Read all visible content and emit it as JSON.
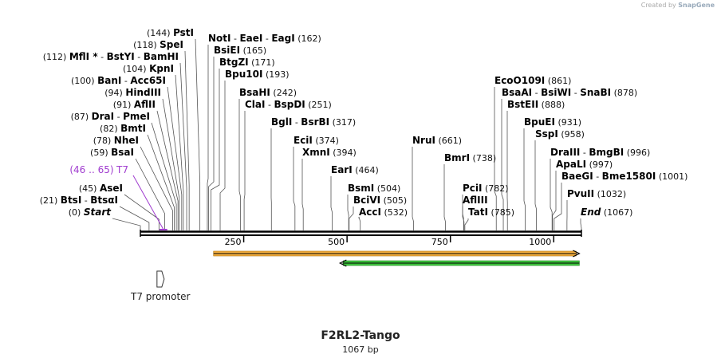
{
  "credit": {
    "prefix": "Created by",
    "brand": "SnapGene"
  },
  "plasmid": {
    "name": "F2RL2-Tango",
    "length": "1067 bp"
  },
  "scale": {
    "total_bp": 1067,
    "ticks": [
      250,
      500,
      750,
      1000
    ]
  },
  "sites": [
    {
      "pos": 0,
      "label": "(0)",
      "parts": [
        {
          "t": "Start",
          "end": true
        }
      ]
    },
    {
      "pos": 21,
      "label": "(21)",
      "parts": [
        {
          "t": "BtsI"
        },
        {
          "t": "BtsαI"
        }
      ]
    },
    {
      "pos": 45,
      "label": "(45)",
      "parts": [
        {
          "t": "AseI"
        }
      ]
    },
    {
      "pos": 46,
      "label": "(46 .. 65)",
      "parts": [
        {
          "t": "T7"
        }
      ],
      "feature": true
    },
    {
      "pos": 59,
      "label": "(59)",
      "parts": [
        {
          "t": "BsaI"
        }
      ]
    },
    {
      "pos": 78,
      "label": "(78)",
      "parts": [
        {
          "t": "NheI"
        }
      ]
    },
    {
      "pos": 82,
      "label": "(82)",
      "parts": [
        {
          "t": "BmtI"
        }
      ]
    },
    {
      "pos": 87,
      "label": "(87)",
      "parts": [
        {
          "t": "DraI"
        },
        {
          "t": "PmeI"
        }
      ]
    },
    {
      "pos": 91,
      "label": "(91)",
      "parts": [
        {
          "t": "AflII"
        }
      ]
    },
    {
      "pos": 94,
      "label": "(94)",
      "parts": [
        {
          "t": "HindIII"
        }
      ]
    },
    {
      "pos": 100,
      "label": "(100)",
      "parts": [
        {
          "t": "BanI"
        },
        {
          "t": "Acc65I"
        }
      ]
    },
    {
      "pos": 104,
      "label": "(104)",
      "parts": [
        {
          "t": "KpnI"
        }
      ]
    },
    {
      "pos": 112,
      "label": "(112)",
      "parts": [
        {
          "t": "MflI *"
        },
        {
          "t": "BstYI"
        },
        {
          "t": "BamHI"
        }
      ]
    },
    {
      "pos": 118,
      "label": "(118)",
      "parts": [
        {
          "t": "SpeI"
        }
      ]
    },
    {
      "pos": 144,
      "label": "(144)",
      "parts": [
        {
          "t": "PstI"
        }
      ]
    },
    {
      "pos": 162,
      "label": "(162)",
      "parts": [
        {
          "t": "NotI"
        },
        {
          "t": "EaeI"
        },
        {
          "t": "EagI"
        }
      ]
    },
    {
      "pos": 165,
      "label": "(165)",
      "parts": [
        {
          "t": "BsiEI"
        }
      ]
    },
    {
      "pos": 171,
      "label": "(171)",
      "parts": [
        {
          "t": "BtgZI"
        }
      ]
    },
    {
      "pos": 193,
      "label": "(193)",
      "parts": [
        {
          "t": "Bpu10I"
        }
      ]
    },
    {
      "pos": 242,
      "label": "(242)",
      "parts": [
        {
          "t": "BsaHI"
        }
      ]
    },
    {
      "pos": 251,
      "label": "(251)",
      "parts": [
        {
          "t": "ClaI"
        },
        {
          "t": "BspDI"
        }
      ]
    },
    {
      "pos": 317,
      "label": "(317)",
      "parts": [
        {
          "t": "BglI"
        },
        {
          "t": "BsrBI"
        }
      ]
    },
    {
      "pos": 374,
      "label": "(374)",
      "parts": [
        {
          "t": "EciI"
        }
      ]
    },
    {
      "pos": 394,
      "label": "(394)",
      "parts": [
        {
          "t": "XmnI"
        }
      ]
    },
    {
      "pos": 464,
      "label": "(464)",
      "parts": [
        {
          "t": "EarI"
        }
      ]
    },
    {
      "pos": 504,
      "label": "(504)",
      "parts": [
        {
          "t": "BsmI"
        }
      ]
    },
    {
      "pos": 505,
      "label": "(505)",
      "parts": [
        {
          "t": "BciVI"
        }
      ]
    },
    {
      "pos": 532,
      "label": "(532)",
      "parts": [
        {
          "t": "AccI"
        }
      ]
    },
    {
      "pos": 661,
      "label": "(661)",
      "parts": [
        {
          "t": "NruI"
        }
      ]
    },
    {
      "pos": 738,
      "label": "(738)",
      "parts": [
        {
          "t": "BmrI"
        }
      ]
    },
    {
      "pos": 782,
      "label": "(782)",
      "parts": [
        {
          "t": "PciI"
        }
      ]
    },
    {
      "pos": 783,
      "label": "",
      "parts": [
        {
          "t": "AflIII"
        }
      ]
    },
    {
      "pos": 785,
      "label": "(785)",
      "parts": [
        {
          "t": "TatI"
        }
      ]
    },
    {
      "pos": 861,
      "label": "(861)",
      "parts": [
        {
          "t": "EcoO109I"
        }
      ]
    },
    {
      "pos": 878,
      "label": "(878)",
      "parts": [
        {
          "t": "BsaAI"
        },
        {
          "t": "BsiWI"
        },
        {
          "t": "SnaBI"
        }
      ]
    },
    {
      "pos": 888,
      "label": "(888)",
      "parts": [
        {
          "t": "BstEII"
        }
      ]
    },
    {
      "pos": 931,
      "label": "(931)",
      "parts": [
        {
          "t": "BpuEI"
        }
      ]
    },
    {
      "pos": 958,
      "label": "(958)",
      "parts": [
        {
          "t": "SspI"
        }
      ]
    },
    {
      "pos": 996,
      "label": "(996)",
      "parts": [
        {
          "t": "DraIII"
        },
        {
          "t": "BmgBI"
        }
      ]
    },
    {
      "pos": 997,
      "label": "(997)",
      "parts": [
        {
          "t": "ApaLI"
        }
      ]
    },
    {
      "pos": 1001,
      "label": "(1001)",
      "parts": [
        {
          "t": "BaeGI"
        },
        {
          "t": "Bme1580I"
        }
      ]
    },
    {
      "pos": 1032,
      "label": "(1032)",
      "parts": [
        {
          "t": "PvuII"
        }
      ]
    },
    {
      "pos": 1067,
      "label": "(1067)",
      "parts": [
        {
          "t": "End",
          "end": true
        }
      ]
    }
  ],
  "features": {
    "orange_arrow": {
      "start": 177,
      "end": 1062,
      "color": "#f5b041"
    },
    "green_arrow": {
      "start": 483,
      "end": 1062,
      "color": "#3cc23c"
    },
    "t7_promoter": {
      "label": "T7 promoter",
      "color": "#ffffff"
    }
  }
}
